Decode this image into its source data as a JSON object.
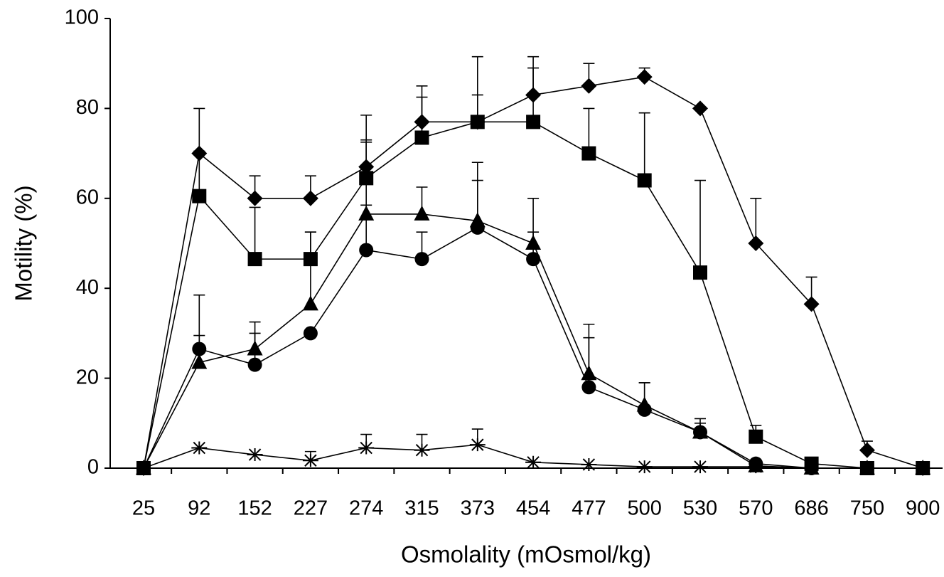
{
  "chart_data": {
    "type": "line",
    "x_label": "Osmolality (mOsmol/kg)",
    "y_label": "Motility (%)",
    "categories": [
      "25",
      "92",
      "152",
      "227",
      "274",
      "315",
      "373",
      "454",
      "477",
      "500",
      "530",
      "570",
      "686",
      "750",
      "900"
    ],
    "ylim": [
      0,
      100
    ],
    "yticks": [
      0,
      20,
      40,
      60,
      80,
      100
    ],
    "grid": false,
    "series": [
      {
        "marker": "diamond",
        "color": "#000000",
        "values": [
          0,
          70,
          60,
          60,
          67,
          77,
          77,
          83,
          85,
          87,
          80,
          50,
          36.5,
          4,
          0
        ],
        "errors": [
          null,
          10,
          5,
          5,
          6,
          8,
          6,
          8.5,
          5,
          2,
          null,
          10,
          6,
          2,
          null
        ]
      },
      {
        "marker": "square",
        "color": "#000000",
        "values": [
          0,
          60.5,
          46.5,
          46.5,
          64.5,
          73.5,
          77,
          77,
          70,
          64,
          43.5,
          7,
          1,
          0,
          0
        ],
        "errors": [
          null,
          10,
          11.5,
          6,
          14,
          9,
          14.5,
          12,
          10,
          15,
          20.5,
          2.5,
          null,
          null,
          null
        ]
      },
      {
        "marker": "triangle",
        "color": "#000000",
        "values": [
          0,
          23.5,
          26.5,
          36.5,
          56.5,
          56.5,
          55,
          50,
          21,
          14,
          8,
          0.5,
          0,
          0,
          0
        ],
        "errors": [
          null,
          6,
          6,
          16,
          16,
          6,
          13,
          10,
          11,
          5,
          3,
          null,
          null,
          null,
          null
        ]
      },
      {
        "marker": "circle",
        "color": "#000000",
        "values": [
          0,
          26.5,
          23,
          30,
          48.5,
          46.5,
          53.5,
          46.5,
          18,
          13,
          8,
          1,
          0,
          0,
          0
        ],
        "errors": [
          null,
          12,
          7,
          null,
          10,
          6,
          10.5,
          6,
          11,
          6,
          2,
          null,
          null,
          null,
          null
        ]
      },
      {
        "marker": "star",
        "color": "#000000",
        "values": [
          0,
          4.5,
          3,
          1.7,
          4.5,
          4,
          5.2,
          1.3,
          0.8,
          0.3,
          0.3,
          0.3,
          0,
          0,
          0
        ],
        "errors": [
          null,
          null,
          null,
          2,
          3,
          3.5,
          3.5,
          null,
          null,
          null,
          null,
          null,
          null,
          null,
          null
        ]
      }
    ]
  }
}
